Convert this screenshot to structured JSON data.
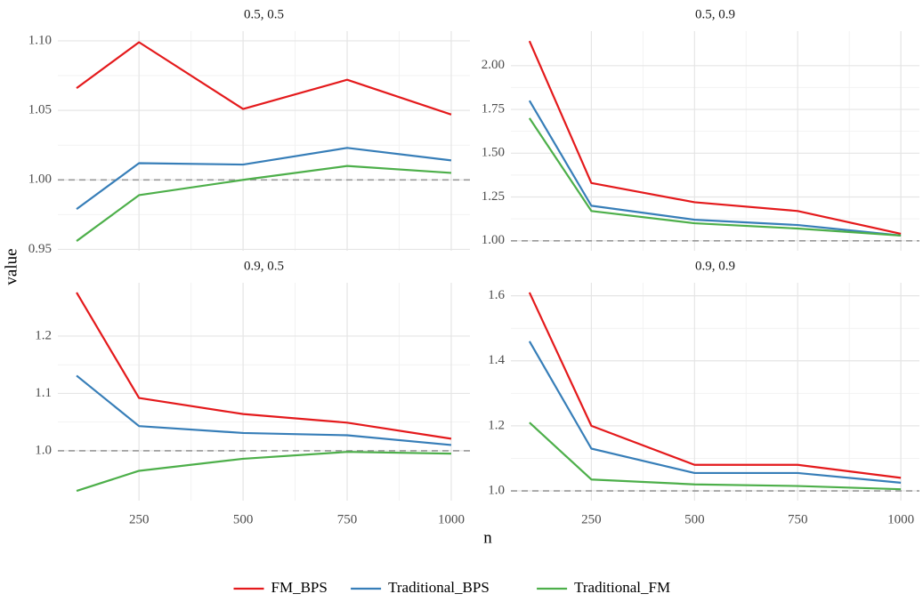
{
  "chart_data": {
    "type": "line",
    "xlabel": "n",
    "ylabel": "value",
    "x": [
      100,
      250,
      500,
      750,
      1000
    ],
    "xlim": [
      55,
      1045
    ],
    "xticks": [
      250,
      500,
      750,
      1000
    ],
    "hline": 1,
    "grid": true,
    "legend": "bottom",
    "series": [
      {
        "name": "FM_BPS",
        "color": "#e41a1c"
      },
      {
        "name": "Traditional_BPS",
        "color": "#377eb8"
      },
      {
        "name": "Traditional_FM",
        "color": "#4daf4a"
      }
    ],
    "facets": [
      {
        "title": "0.5, 0.5",
        "ylim": [
          0.949,
          1.107
        ],
        "yticks": [
          0.95,
          {
            "value": 1,
            "label": "1.00"
          },
          1.05,
          {
            "value": 1.1,
            "label": "1.10"
          }
        ],
        "values": [
          [
            1.066,
            1.099,
            1.051,
            1.072,
            1.047
          ],
          [
            0.979,
            1.012,
            1.011,
            1.023,
            1.014
          ],
          [
            0.956,
            0.989,
            1.0,
            1.01,
            1.005
          ]
        ]
      },
      {
        "title": "0.5, 0.9",
        "ylim": [
          0.943,
          2.197
        ],
        "yticks": [
          {
            "value": 1,
            "label": "1.00"
          },
          1.25,
          {
            "value": 1.5,
            "label": "1.50"
          },
          1.75,
          {
            "value": 2,
            "label": "2.00"
          }
        ],
        "values": [
          [
            2.14,
            1.33,
            1.22,
            1.17,
            1.04
          ],
          [
            1.8,
            1.2,
            1.12,
            1.09,
            1.03
          ],
          [
            1.7,
            1.17,
            1.1,
            1.07,
            1.03
          ]
        ]
      },
      {
        "title": "0.9, 0.5",
        "ylim": [
          0.913,
          1.293
        ],
        "yticks": [
          {
            "value": 1,
            "label": "1.0"
          },
          1.1,
          1.2
        ],
        "values": [
          [
            1.276,
            1.092,
            1.064,
            1.049,
            1.021
          ],
          [
            1.131,
            1.043,
            1.031,
            1.027,
            1.01
          ],
          [
            0.93,
            0.965,
            0.986,
            0.998,
            0.995
          ]
        ]
      },
      {
        "title": "0.9, 0.9",
        "ylim": [
          0.97,
          1.64
        ],
        "yticks": [
          {
            "value": 1,
            "label": "1.0"
          },
          1.2,
          1.4,
          1.6
        ],
        "values": [
          [
            1.61,
            1.2,
            1.08,
            1.08,
            1.04
          ],
          [
            1.46,
            1.13,
            1.055,
            1.055,
            1.025
          ],
          [
            1.21,
            1.035,
            1.02,
            1.015,
            1.005
          ]
        ]
      }
    ]
  }
}
